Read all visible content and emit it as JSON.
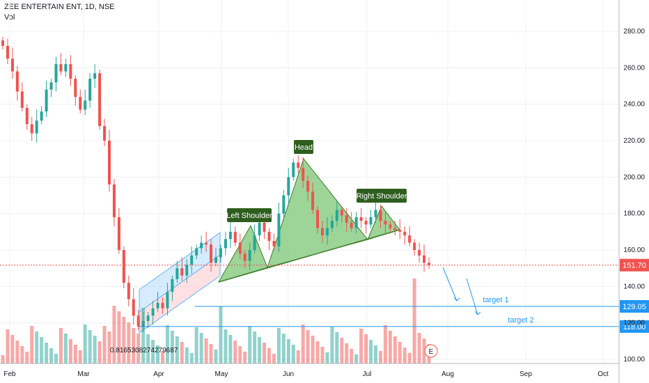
{
  "header": {
    "symbol": "ZEE ENTERTAIN ENT, 1D, NSE",
    "indicator": "Vol"
  },
  "colors": {
    "up": "#26a69a",
    "down": "#ef5350",
    "pattern_fill": "#7cc576",
    "label_bg": "#2e5e1e",
    "target": "#2196f3",
    "price": "#ef5350"
  },
  "chart_data": {
    "type": "candlestick",
    "title": "ZEE ENTERTAIN ENT, 1D, NSE",
    "ylim": [
      100,
      290
    ],
    "yticks": [
      100,
      120,
      140,
      160,
      180,
      200,
      220,
      240,
      260,
      280
    ],
    "xticks": [
      "Feb",
      "Mar",
      "Apr",
      "May",
      "Jun",
      "Jul",
      "Aug",
      "Sep",
      "Oct"
    ],
    "last_price": "151.70",
    "volume_label": "0.8165308274279687",
    "earnings_marker": "E",
    "target_lines": [
      {
        "price": "129.05",
        "value": 129.05,
        "label": "target 1"
      },
      {
        "price": "118.00",
        "value": 118.0,
        "label": "target 2"
      }
    ],
    "annotations": [
      "Left Shoulder",
      "Head",
      "Right Shoulder"
    ],
    "series": [
      {
        "name": "close",
        "values": [
          272,
          265,
          258,
          247,
          238,
          229,
          224,
          231,
          236,
          248,
          252,
          262,
          258,
          262,
          254,
          244,
          237,
          242,
          254,
          257,
          228,
          220,
          196,
          178,
          160,
          142,
          133,
          124,
          118,
          121,
          124,
          128,
          131,
          128,
          137,
          144,
          150,
          146,
          152,
          157,
          161,
          164,
          163,
          153,
          156,
          161,
          166,
          170,
          164,
          158,
          154,
          160,
          168,
          175,
          170,
          165,
          162,
          180,
          190,
          200,
          208,
          205,
          198,
          192,
          182,
          172,
          168,
          172,
          176,
          182,
          179,
          175,
          172,
          178,
          176,
          174,
          178,
          182,
          176,
          174,
          172,
          171,
          170,
          168,
          164,
          160,
          157,
          153,
          151.7
        ]
      }
    ]
  }
}
